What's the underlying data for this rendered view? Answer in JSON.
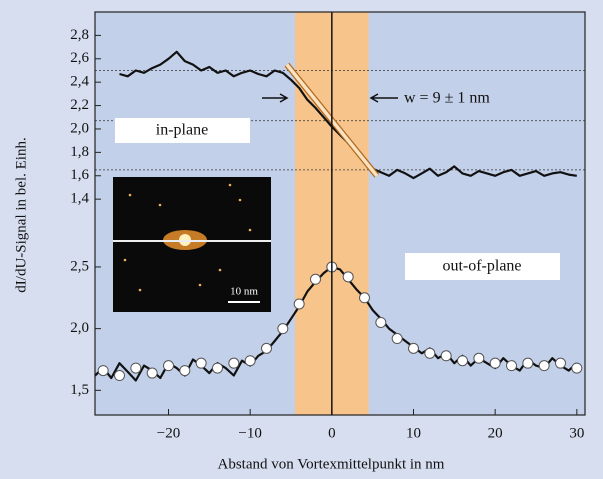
{
  "chart_data": [
    {
      "type": "line",
      "y_label": "dI/dU-Signal in bel. Einh.",
      "xlim": [
        -29,
        31
      ],
      "ylim": [
        1.35,
        3.0
      ],
      "yticks": [
        {
          "value": 1.4,
          "label": "1,4"
        },
        {
          "value": 1.6,
          "label": "1,6"
        },
        {
          "value": 1.8,
          "label": "1,8"
        },
        {
          "value": 2.0,
          "label": "2,0"
        },
        {
          "value": 2.2,
          "label": "2,2"
        },
        {
          "value": 2.4,
          "label": "2,4"
        },
        {
          "value": 2.6,
          "label": "2,6"
        },
        {
          "value": 2.8,
          "label": "2,8"
        }
      ],
      "band": [
        -4.5,
        4.5
      ],
      "band_color": "#f7c48c",
      "vline": 0,
      "hlines": [
        2.5,
        2.07,
        1.65
      ],
      "annotations": [
        "in-plane",
        "w = 9 ± 1 nm"
      ],
      "series": [
        {
          "style": "line",
          "color": "#111111",
          "x": [
            -26,
            -25,
            -24,
            -23,
            -22,
            -21,
            -20,
            -19,
            -18,
            -17,
            -16,
            -15,
            -14,
            -13,
            -12,
            -11,
            -10,
            -9,
            -8,
            -7,
            -6,
            -5,
            -4,
            -3,
            -2,
            -1,
            0,
            1,
            2,
            3,
            4,
            5,
            6,
            7,
            8,
            9,
            10,
            11,
            12,
            13,
            14,
            15,
            16,
            17,
            18,
            19,
            20,
            21,
            22,
            23,
            24,
            25,
            26,
            27,
            28,
            29,
            30
          ],
          "values": [
            2.47,
            2.45,
            2.5,
            2.48,
            2.52,
            2.55,
            2.6,
            2.66,
            2.58,
            2.55,
            2.5,
            2.53,
            2.48,
            2.5,
            2.45,
            2.48,
            2.5,
            2.47,
            2.45,
            2.5,
            2.48,
            2.42,
            2.35,
            2.25,
            2.18,
            2.1,
            2.02,
            1.95,
            1.88,
            1.8,
            1.72,
            1.66,
            1.63,
            1.6,
            1.65,
            1.62,
            1.58,
            1.62,
            1.66,
            1.6,
            1.63,
            1.68,
            1.62,
            1.6,
            1.64,
            1.62,
            1.6,
            1.63,
            1.65,
            1.6,
            1.62,
            1.64,
            1.6,
            1.62,
            1.63,
            1.61,
            1.6
          ]
        },
        {
          "style": "fit",
          "color": "#fbe2c0",
          "x": [
            -5.5,
            5.5
          ],
          "values": [
            2.55,
            1.6
          ]
        }
      ]
    },
    {
      "type": "line",
      "x_label": "Abstand von Vortexmittelpunkt in nm",
      "xlim": [
        -29,
        31
      ],
      "ylim": [
        1.3,
        2.84
      ],
      "xticks": [
        {
          "value": -20,
          "label": "−20"
        },
        {
          "value": -10,
          "label": "−10"
        },
        0,
        10,
        20,
        30
      ],
      "yticks": [
        {
          "value": 1.5,
          "label": "1,5"
        },
        {
          "value": 2.0,
          "label": "2,0"
        },
        {
          "value": 2.5,
          "label": "2,5"
        }
      ],
      "annotations": [
        "out-of-plane",
        "10 nm"
      ],
      "series": [
        {
          "style": "line",
          "color": "#111111",
          "x": [
            -29,
            -28,
            -27,
            -26,
            -25,
            -24,
            -23,
            -22,
            -21,
            -20,
            -19,
            -18,
            -17,
            -16,
            -15,
            -14,
            -13,
            -12,
            -11,
            -10,
            -9,
            -8,
            -7,
            -6,
            -5,
            -4,
            -3,
            -2,
            -1,
            0,
            1,
            2,
            3,
            4,
            5,
            6,
            7,
            8,
            9,
            10,
            11,
            12,
            13,
            14,
            15,
            16,
            17,
            18,
            19,
            20,
            21,
            22,
            23,
            24,
            25,
            26,
            27,
            28,
            29,
            30
          ],
          "values": [
            1.62,
            1.68,
            1.6,
            1.72,
            1.65,
            1.58,
            1.7,
            1.66,
            1.6,
            1.72,
            1.68,
            1.62,
            1.75,
            1.7,
            1.64,
            1.72,
            1.68,
            1.62,
            1.74,
            1.7,
            1.78,
            1.82,
            1.9,
            1.98,
            2.08,
            2.18,
            2.3,
            2.38,
            2.45,
            2.5,
            2.48,
            2.4,
            2.32,
            2.25,
            2.15,
            2.08,
            2.0,
            1.95,
            1.9,
            1.85,
            1.8,
            1.84,
            1.76,
            1.8,
            1.72,
            1.78,
            1.7,
            1.76,
            1.72,
            1.68,
            1.76,
            1.7,
            1.66,
            1.75,
            1.7,
            1.68,
            1.76,
            1.7,
            1.66,
            1.72
          ]
        },
        {
          "style": "markers",
          "color": "#ffffff",
          "x": [
            -28,
            -26,
            -24,
            -22,
            -20,
            -18,
            -16,
            -14,
            -12,
            -10,
            -8,
            -6,
            -4,
            -2,
            0,
            2,
            4,
            6,
            8,
            10,
            12,
            14,
            16,
            18,
            20,
            22,
            24,
            26,
            28,
            30
          ],
          "values": [
            1.66,
            1.62,
            1.68,
            1.64,
            1.7,
            1.66,
            1.72,
            1.68,
            1.72,
            1.74,
            1.84,
            2.0,
            2.2,
            2.4,
            2.5,
            2.42,
            2.25,
            2.05,
            1.92,
            1.84,
            1.8,
            1.78,
            1.74,
            1.76,
            1.72,
            1.7,
            1.72,
            1.7,
            1.72,
            1.68
          ]
        }
      ]
    }
  ]
}
